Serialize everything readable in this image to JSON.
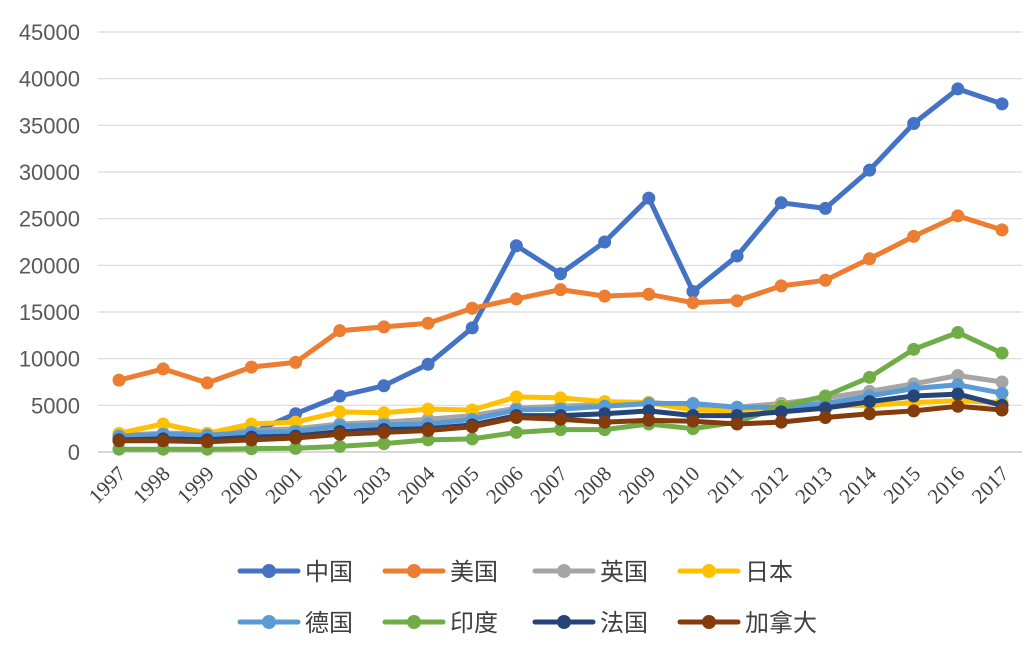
{
  "chart_data": {
    "type": "line",
    "title": "",
    "xlabel": "",
    "ylabel": "",
    "x": [
      "1997",
      "1998",
      "1999",
      "2000",
      "2001",
      "2002",
      "2003",
      "2004",
      "2005",
      "2006",
      "2007",
      "2008",
      "2009",
      "2010",
      "2011",
      "2012",
      "2013",
      "2014",
      "2015",
      "2016",
      "2017"
    ],
    "ylim": [
      0,
      45000
    ],
    "yticks": [
      0,
      5000,
      10000,
      15000,
      20000,
      25000,
      30000,
      35000,
      40000,
      45000
    ],
    "grid": true,
    "legend_position": "bottom",
    "series": [
      {
        "name": "中国",
        "color": "#4472C4",
        "values": [
          1500,
          1700,
          1500,
          2000,
          4100,
          6000,
          7100,
          9400,
          13300,
          22100,
          19100,
          22500,
          27200,
          17200,
          21000,
          26700,
          26100,
          30200,
          35200,
          38900,
          37300
        ]
      },
      {
        "name": "美国",
        "color": "#ED7D31",
        "values": [
          7700,
          8900,
          7400,
          9100,
          9600,
          13000,
          13400,
          13800,
          15400,
          16400,
          17400,
          16700,
          16900,
          16000,
          16200,
          17800,
          18400,
          20700,
          23100,
          25300,
          23800
        ]
      },
      {
        "name": "英国",
        "color": "#A5A5A5",
        "values": [
          1800,
          2000,
          2000,
          2300,
          2500,
          3000,
          3200,
          3500,
          3900,
          4700,
          4900,
          5100,
          5300,
          5000,
          4800,
          5200,
          5800,
          6500,
          7300,
          8200,
          7500
        ]
      },
      {
        "name": "日本",
        "color": "#FFC000",
        "values": [
          2000,
          3000,
          2000,
          3000,
          3200,
          4300,
          4200,
          4600,
          4500,
          5900,
          5800,
          5400,
          5300,
          4500,
          4400,
          5000,
          4900,
          5000,
          5300,
          5500,
          5300
        ]
      },
      {
        "name": "德国",
        "color": "#5B9BD5",
        "values": [
          1700,
          1900,
          1800,
          2100,
          2200,
          2800,
          2900,
          3000,
          3500,
          4500,
          4600,
          4900,
          5200,
          5200,
          4800,
          4800,
          5200,
          6000,
          6800,
          7200,
          6300
        ]
      },
      {
        "name": "印度",
        "color": "#70AD47",
        "values": [
          300,
          300,
          300,
          350,
          400,
          600,
          900,
          1300,
          1400,
          2100,
          2400,
          2400,
          3000,
          2500,
          3200,
          4900,
          6000,
          8000,
          11000,
          12800,
          10600
        ]
      },
      {
        "name": "法国",
        "color": "#264478",
        "values": [
          1300,
          1400,
          1300,
          1600,
          1700,
          2200,
          2400,
          2500,
          2900,
          3900,
          3900,
          4100,
          4400,
          3900,
          3900,
          4300,
          4700,
          5400,
          6000,
          6200,
          5000
        ]
      },
      {
        "name": "加拿大",
        "color": "#843C0C",
        "values": [
          1200,
          1200,
          1100,
          1300,
          1500,
          1900,
          2100,
          2300,
          2700,
          3700,
          3500,
          3200,
          3400,
          3300,
          3000,
          3200,
          3700,
          4100,
          4400,
          4900,
          4500
        ]
      }
    ]
  }
}
